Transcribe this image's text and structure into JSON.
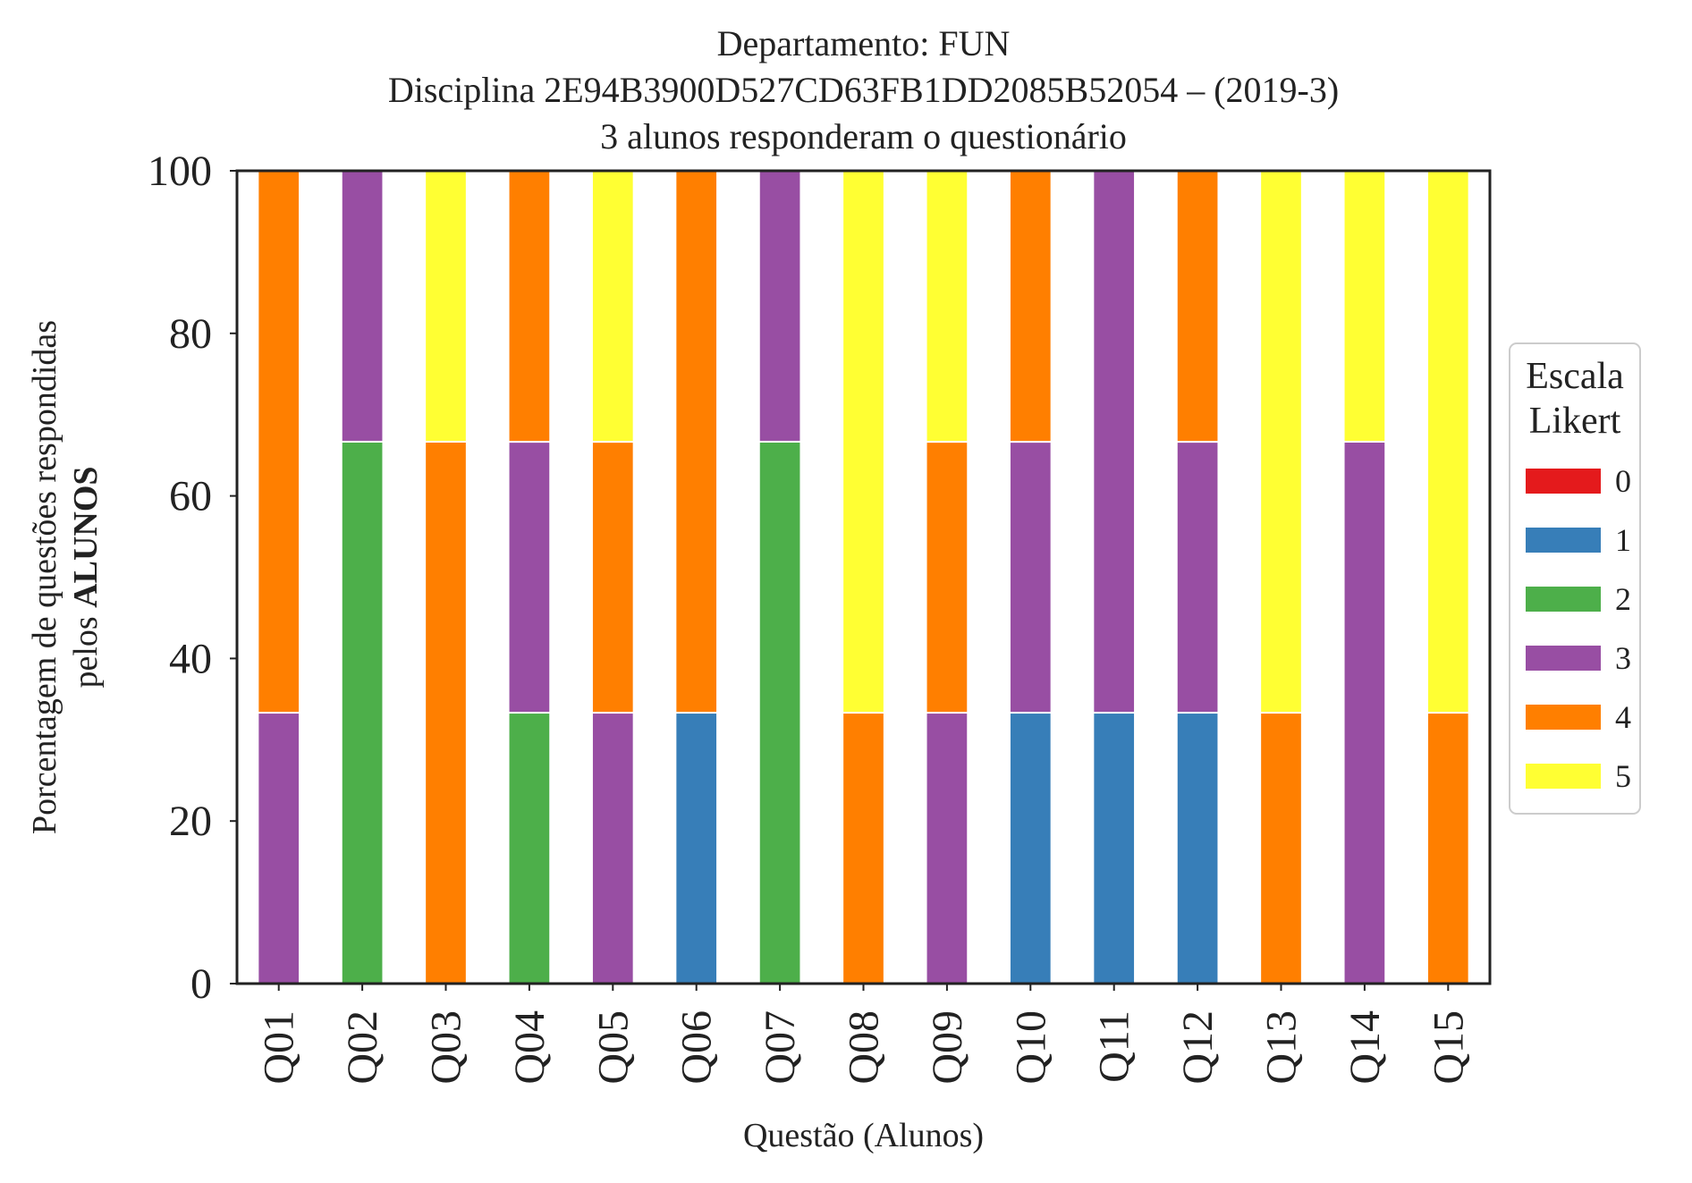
{
  "chart_data": {
    "type": "bar",
    "stacked": true,
    "title_lines": [
      "Departamento: FUN",
      "Disciplina 2E94B3900D527CD63FB1DD2085B52054 – (2019-3)",
      "3 alunos responderam o questionário"
    ],
    "xlabel": "Questão (Alunos)",
    "ylabel_line1": "Porcentagem de questões respondidas",
    "ylabel_line2_prefix": "pelos ",
    "ylabel_line2_bold": "ALUNOS",
    "ylim": [
      0,
      100
    ],
    "yticks": [
      "0",
      "20",
      "40",
      "60",
      "80",
      "100"
    ],
    "grid": false,
    "categories": [
      "Q01",
      "Q02",
      "Q03",
      "Q04",
      "Q05",
      "Q06",
      "Q07",
      "Q08",
      "Q09",
      "Q10",
      "Q11",
      "Q12",
      "Q13",
      "Q14",
      "Q15"
    ],
    "legend": {
      "title_lines": [
        "Escala",
        "Likert"
      ],
      "placement": "right",
      "entries": [
        "0",
        "1",
        "2",
        "3",
        "4",
        "5"
      ]
    },
    "series": [
      {
        "name": "0",
        "color": "#e41a1c",
        "values": [
          0,
          0,
          0,
          0,
          0,
          0,
          0,
          0,
          0,
          0,
          0,
          0,
          0,
          0,
          0
        ]
      },
      {
        "name": "1",
        "color": "#377eb8",
        "values": [
          0,
          0,
          0,
          0,
          0,
          33.33,
          0,
          0,
          0,
          33.33,
          33.33,
          33.33,
          0,
          0,
          0
        ]
      },
      {
        "name": "2",
        "color": "#4daf4a",
        "values": [
          0,
          66.67,
          0,
          33.33,
          0,
          0,
          66.67,
          0,
          0,
          0,
          0,
          0,
          0,
          0,
          0
        ]
      },
      {
        "name": "3",
        "color": "#984ea3",
        "values": [
          33.33,
          33.33,
          0,
          33.33,
          33.33,
          0,
          33.33,
          0,
          33.33,
          33.33,
          66.67,
          33.33,
          0,
          66.67,
          0
        ]
      },
      {
        "name": "4",
        "color": "#ff7f00",
        "values": [
          66.67,
          0,
          66.67,
          33.33,
          33.33,
          66.67,
          0,
          33.33,
          33.33,
          33.33,
          0,
          33.33,
          33.33,
          0,
          33.33
        ]
      },
      {
        "name": "5",
        "color": "#ffff33",
        "values": [
          0,
          0,
          33.33,
          0,
          33.33,
          0,
          0,
          66.67,
          33.33,
          0,
          0,
          0,
          66.67,
          33.33,
          66.67
        ]
      }
    ]
  }
}
